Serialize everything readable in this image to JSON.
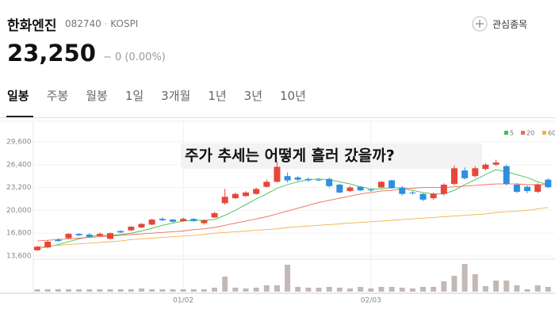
{
  "header": {
    "name": "한화엔진",
    "code": "082740",
    "market": "KOSPI",
    "watch": "관심종목",
    "price": "23,250",
    "change": "− 0 (0.00%)"
  },
  "tabs": [
    "일봉",
    "주봉",
    "월봉",
    "1일",
    "3개월",
    "1년",
    "3년",
    "10년"
  ],
  "chart_data": {
    "type": "candlestick",
    "annotation": "주가 추세는 어떻게 흘러 갔을까?",
    "categories": [
      null,
      null,
      null,
      null,
      null,
      null,
      null,
      null,
      null,
      null,
      null,
      null,
      null,
      null,
      "01/02",
      null,
      null,
      null,
      null,
      null,
      null,
      null,
      null,
      null,
      null,
      null,
      null,
      null,
      null,
      null,
      null,
      null,
      "02/03",
      null,
      null,
      null,
      null,
      null,
      null,
      null,
      null,
      null,
      null,
      null,
      null,
      null,
      null,
      null,
      null,
      null
    ],
    "open": [
      14400,
      14800,
      15900,
      16100,
      16700,
      16600,
      16400,
      16000,
      17100,
      17200,
      17600,
      18000,
      18800,
      18700,
      18500,
      18800,
      18200,
      19000,
      21000,
      21700,
      22000,
      22300,
      23300,
      24000,
      24800,
      24600,
      24400,
      24300,
      24400,
      23600,
      22700,
      23300,
      22900,
      23200,
      24200,
      23200,
      22500,
      22300,
      21700,
      22300,
      23700,
      25600,
      24800,
      25800,
      26400,
      26200,
      23600,
      23300,
      22600,
      24300
    ],
    "high": [
      15000,
      15800,
      16100,
      16800,
      16800,
      16800,
      16900,
      16900,
      17200,
      17800,
      18200,
      18800,
      19000,
      18800,
      19000,
      18900,
      18700,
      19800,
      23000,
      22500,
      22700,
      23200,
      24300,
      26800,
      25300,
      24800,
      24600,
      24500,
      24600,
      23700,
      23400,
      23400,
      23000,
      24100,
      24300,
      23400,
      22700,
      22400,
      22500,
      23800,
      26300,
      26000,
      26200,
      26600,
      27100,
      26400,
      23800,
      23500,
      23800,
      24500
    ],
    "low": [
      14300,
      14700,
      15600,
      16000,
      16400,
      16200,
      16300,
      15900,
      16800,
      17100,
      17500,
      17900,
      18500,
      18300,
      18400,
      18400,
      18000,
      18900,
      20800,
      21600,
      21900,
      22200,
      23200,
      23900,
      23900,
      24100,
      24000,
      24100,
      23200,
      22400,
      22600,
      22700,
      22600,
      23100,
      23000,
      22100,
      22200,
      21300,
      21500,
      22100,
      23500,
      24300,
      24600,
      25600,
      26200,
      23500,
      22400,
      22400,
      22400,
      23100
    ],
    "close": [
      14900,
      15600,
      15700,
      16700,
      16500,
      16300,
      16700,
      16800,
      16900,
      17700,
      18100,
      18700,
      18600,
      18400,
      18800,
      18500,
      18600,
      19600,
      21900,
      22300,
      22500,
      23000,
      24000,
      26100,
      24200,
      24300,
      24200,
      24200,
      23400,
      22500,
      23200,
      22800,
      22800,
      24000,
      23100,
      22300,
      22400,
      21500,
      22300,
      23600,
      25900,
      24500,
      25900,
      26400,
      26700,
      23700,
      22600,
      22700,
      23600,
      23250
    ],
    "up_color": "#e8463a",
    "down_color": "#2d8fe0",
    "ylim": [
      13600,
      32000
    ],
    "yticks": [
      {
        "value": 13600,
        "label": "13,600"
      },
      {
        "value": 16800,
        "label": "16,800"
      },
      {
        "value": 20000,
        "label": "20,000"
      },
      {
        "value": 23200,
        "label": "23,200"
      },
      {
        "value": 26400,
        "label": "26,400"
      },
      {
        "value": 29600,
        "label": "29,600"
      }
    ],
    "series": [
      {
        "name": "5",
        "color": "#3cc24a",
        "values": [
          14600,
          14900,
          15200,
          15600,
          16000,
          16300,
          16500,
          16500,
          16600,
          16800,
          17100,
          17500,
          17900,
          18200,
          18500,
          18600,
          18600,
          18700,
          19300,
          20000,
          20800,
          21600,
          22300,
          23100,
          23600,
          24000,
          24300,
          24400,
          24300,
          24000,
          23700,
          23300,
          23000,
          23000,
          23200,
          23100,
          22800,
          22500,
          22300,
          22300,
          22800,
          23600,
          24300,
          25000,
          25700,
          25400,
          25000,
          24600,
          24000,
          23600
        ]
      },
      {
        "name": "20",
        "color": "#f06a5a",
        "values": [
          15700,
          15800,
          15900,
          16000,
          16100,
          16200,
          16300,
          16400,
          16500,
          16600,
          16700,
          16800,
          16900,
          17000,
          17100,
          17300,
          17400,
          17600,
          17900,
          18200,
          18500,
          18800,
          19100,
          19500,
          19900,
          20300,
          20700,
          21100,
          21400,
          21700,
          22000,
          22300,
          22500,
          22700,
          22800,
          23000,
          23100,
          23200,
          23200,
          23200,
          23300,
          23400,
          23500,
          23600,
          23700,
          23700,
          23700,
          23600,
          23600,
          23600
        ]
      },
      {
        "name": "60",
        "color": "#f5b14a",
        "values": [
          14900,
          15000,
          15100,
          15200,
          15300,
          15400,
          15500,
          15600,
          15700,
          15900,
          16000,
          16100,
          16200,
          16300,
          16400,
          16500,
          16600,
          16800,
          16900,
          17000,
          17100,
          17200,
          17300,
          17400,
          17600,
          17700,
          17800,
          17900,
          18000,
          18100,
          18200,
          18300,
          18400,
          18500,
          18600,
          18700,
          18800,
          18900,
          19000,
          19100,
          19200,
          19300,
          19400,
          19500,
          19700,
          19800,
          19900,
          20000,
          20200,
          20400
        ]
      }
    ],
    "legend": "top-right",
    "volume": {
      "color": "#c4b8b4",
      "ylim": [
        0,
        38
      ],
      "values": [
        3,
        3,
        3,
        3,
        3,
        3,
        3,
        3,
        3,
        3,
        4,
        3,
        3,
        3,
        3,
        3,
        3,
        5,
        19,
        5,
        4,
        5,
        8,
        8,
        34,
        6,
        5,
        5,
        6,
        5,
        4,
        6,
        4,
        6,
        6,
        5,
        4,
        6,
        6,
        13,
        20,
        35,
        22,
        7,
        14,
        14,
        8,
        3,
        8,
        6
      ]
    }
  }
}
